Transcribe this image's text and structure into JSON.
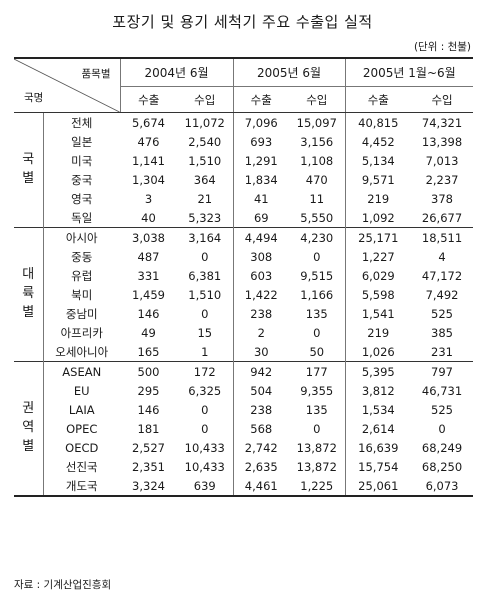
{
  "title": "포장기 및 용기 세척기 주요 수출입 실적",
  "unit": "(단위 : 천불)",
  "header": {
    "item_label": "품목별",
    "country_label": "국명",
    "periods": [
      "2004년 6월",
      "2005년 6월",
      "2005년 1월~6월"
    ],
    "export_label": "수출",
    "import_label": "수입"
  },
  "groups": [
    {
      "label": [
        "국",
        "별"
      ],
      "rows": [
        {
          "name": "전체",
          "v": [
            "5,674",
            "11,072",
            "7,096",
            "15,097",
            "40,815",
            "74,321"
          ]
        },
        {
          "name": "일본",
          "v": [
            "476",
            "2,540",
            "693",
            "3,156",
            "4,452",
            "13,398"
          ]
        },
        {
          "name": "미국",
          "v": [
            "1,141",
            "1,510",
            "1,291",
            "1,108",
            "5,134",
            "7,013"
          ]
        },
        {
          "name": "중국",
          "v": [
            "1,304",
            "364",
            "1,834",
            "470",
            "9,571",
            "2,237"
          ]
        },
        {
          "name": "영국",
          "v": [
            "3",
            "21",
            "41",
            "11",
            "219",
            "378"
          ]
        },
        {
          "name": "독일",
          "v": [
            "40",
            "5,323",
            "69",
            "5,550",
            "1,092",
            "26,677"
          ]
        }
      ]
    },
    {
      "label": [
        "대",
        "륙",
        "별"
      ],
      "rows": [
        {
          "name": "아시아",
          "v": [
            "3,038",
            "3,164",
            "4,494",
            "4,230",
            "25,171",
            "18,511"
          ]
        },
        {
          "name": "중동",
          "v": [
            "487",
            "0",
            "308",
            "0",
            "1,227",
            "4"
          ]
        },
        {
          "name": "유럽",
          "v": [
            "331",
            "6,381",
            "603",
            "9,515",
            "6,029",
            "47,172"
          ]
        },
        {
          "name": "북미",
          "v": [
            "1,459",
            "1,510",
            "1,422",
            "1,166",
            "5,598",
            "7,492"
          ]
        },
        {
          "name": "중남미",
          "v": [
            "146",
            "0",
            "238",
            "135",
            "1,541",
            "525"
          ]
        },
        {
          "name": "아프리카",
          "v": [
            "49",
            "15",
            "2",
            "0",
            "219",
            "385"
          ]
        },
        {
          "name": "오세아니아",
          "v": [
            "165",
            "1",
            "30",
            "50",
            "1,026",
            "231"
          ]
        }
      ]
    },
    {
      "label": [
        "권",
        "역",
        "별"
      ],
      "rows": [
        {
          "name": "ASEAN",
          "v": [
            "500",
            "172",
            "942",
            "177",
            "5,395",
            "797"
          ]
        },
        {
          "name": "EU",
          "v": [
            "295",
            "6,325",
            "504",
            "9,355",
            "3,812",
            "46,731"
          ]
        },
        {
          "name": "LAIA",
          "v": [
            "146",
            "0",
            "238",
            "135",
            "1,534",
            "525"
          ]
        },
        {
          "name": "OPEC",
          "v": [
            "181",
            "0",
            "568",
            "0",
            "2,614",
            "0"
          ]
        },
        {
          "name": "OECD",
          "v": [
            "2,527",
            "10,433",
            "2,742",
            "13,872",
            "16,639",
            "68,249"
          ]
        },
        {
          "name": "선진국",
          "v": [
            "2,351",
            "10,433",
            "2,635",
            "13,872",
            "15,754",
            "68,250"
          ]
        },
        {
          "name": "개도국",
          "v": [
            "3,324",
            "639",
            "4,461",
            "1,225",
            "25,061",
            "6,073"
          ]
        }
      ]
    }
  ],
  "source": "자료 : 기계산업진흥회"
}
